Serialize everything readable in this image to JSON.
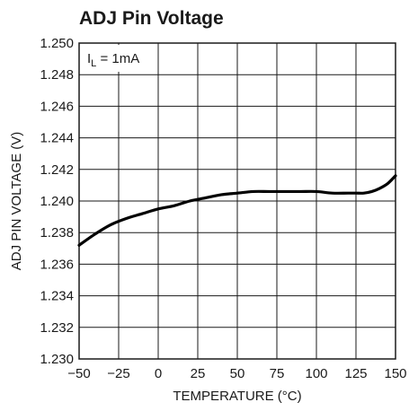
{
  "chart_data": {
    "type": "line",
    "title": "ADJ Pin Voltage",
    "xlabel": "TEMPERATURE (°C)",
    "ylabel": "ADJ PIN VOLTAGE (V)",
    "xlim": [
      -50,
      150
    ],
    "ylim": [
      1.23,
      1.25
    ],
    "x_ticks": [
      -50,
      -25,
      0,
      25,
      50,
      75,
      100,
      125,
      150
    ],
    "x_tick_labels": [
      "−50",
      "−25",
      "0",
      "25",
      "50",
      "75",
      "100",
      "125",
      "150"
    ],
    "y_ticks": [
      1.23,
      1.232,
      1.234,
      1.236,
      1.238,
      1.24,
      1.242,
      1.244,
      1.246,
      1.248,
      1.25
    ],
    "y_tick_labels": [
      "1.230",
      "1.232",
      "1.234",
      "1.236",
      "1.238",
      "1.240",
      "1.242",
      "1.244",
      "1.246",
      "1.248",
      "1.250"
    ],
    "grid": true,
    "annotation": {
      "main": "I",
      "sub": "L",
      "rest": " = 1mA"
    },
    "series": [
      {
        "color": "#000000",
        "x": [
          -50,
          -40,
          -30,
          -20,
          -10,
          0,
          10,
          20,
          30,
          40,
          50,
          60,
          70,
          80,
          90,
          100,
          110,
          120,
          125,
          130,
          135,
          140,
          145,
          150
        ],
        "y": [
          1.2372,
          1.2379,
          1.2385,
          1.2389,
          1.2392,
          1.2395,
          1.2397,
          1.24,
          1.2402,
          1.2404,
          1.2405,
          1.2406,
          1.2406,
          1.2406,
          1.2406,
          1.2406,
          1.2405,
          1.2405,
          1.2405,
          1.2405,
          1.2406,
          1.2408,
          1.2411,
          1.2416
        ]
      }
    ]
  }
}
